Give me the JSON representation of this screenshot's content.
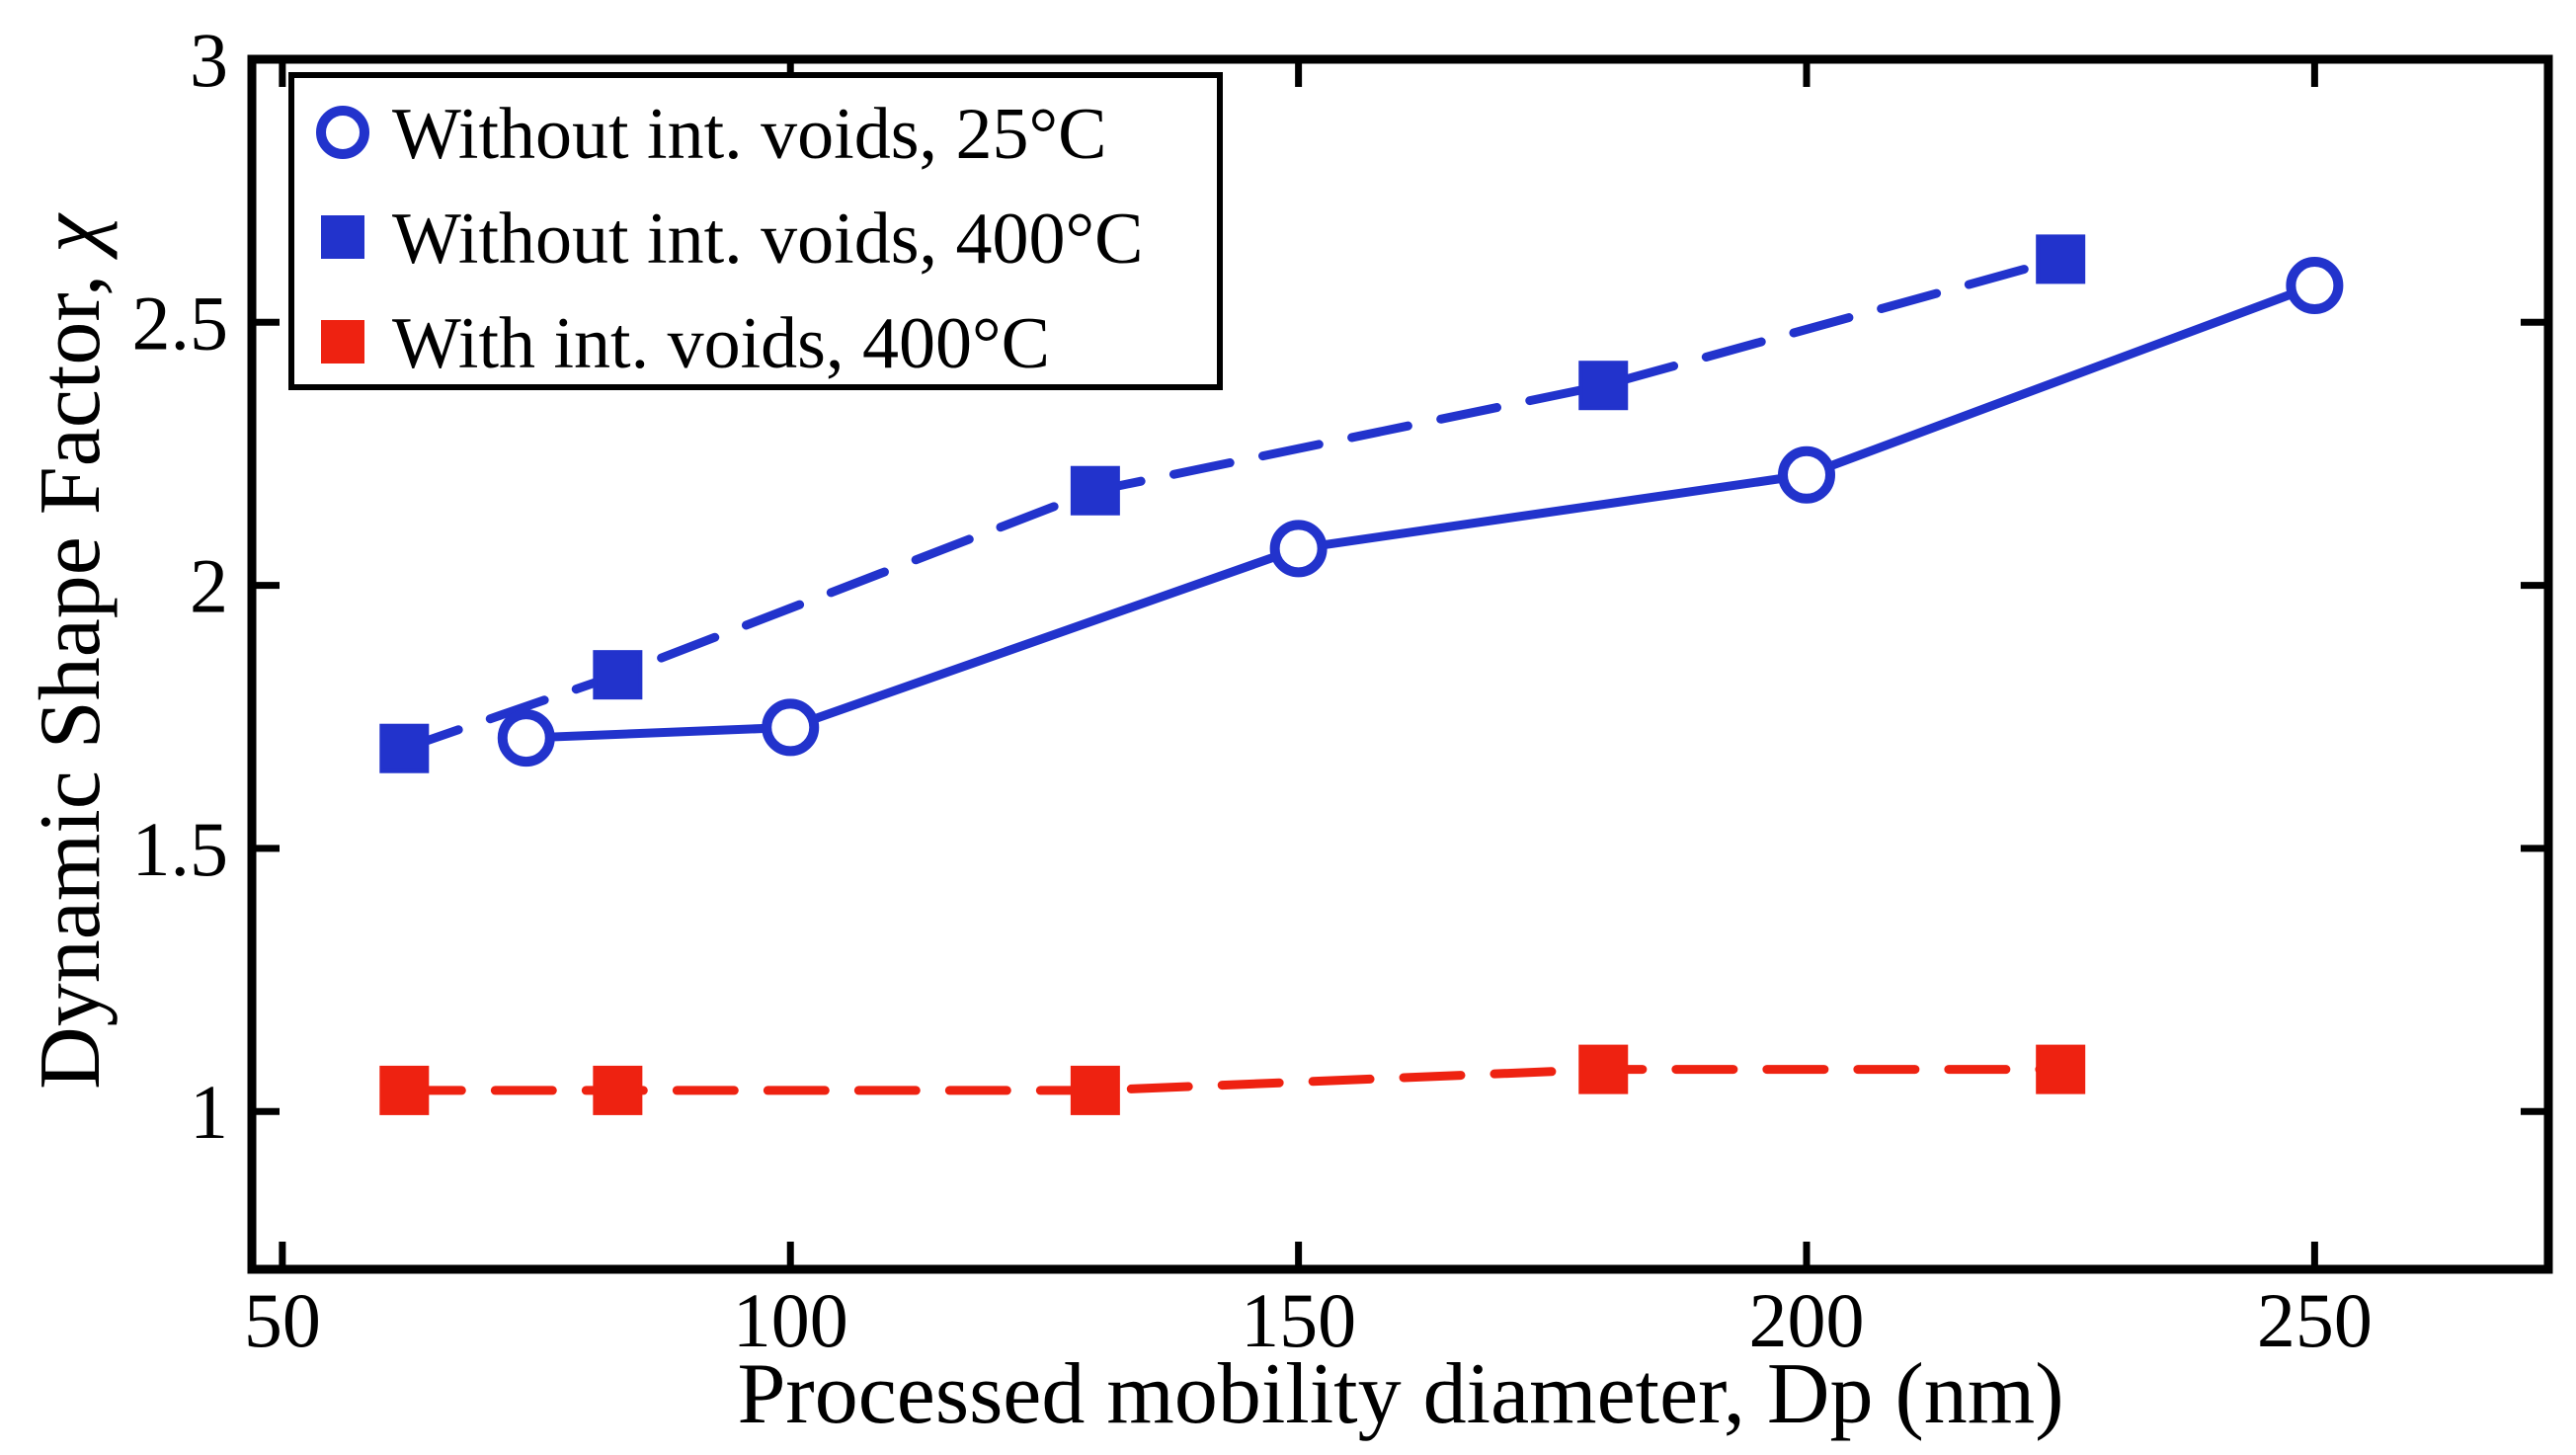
{
  "figure": {
    "background": "#ffffff",
    "frame_color": "#000000"
  },
  "chart_data": {
    "type": "line",
    "title": "",
    "xlabel": "Processed mobility diameter, Dp (nm)",
    "ylabel_prefix": "Dynamic Shape Factor, ",
    "ylabel_symbol": "χ",
    "xlim": [
      47,
      273
    ],
    "ylim": [
      0.7,
      3
    ],
    "xticks": [
      50,
      100,
      150,
      200,
      250
    ],
    "xtick_labels": [
      "50",
      "100",
      "150",
      "200",
      "250"
    ],
    "yticks": [
      1,
      1.5,
      2,
      2.5,
      3
    ],
    "ytick_labels": [
      "1",
      "1.5",
      "2",
      "2.5",
      "3"
    ],
    "grid": false,
    "legend_position": "top-left",
    "axis_color": "#000000",
    "series": [
      {
        "name": "Without int. voids, 25°C",
        "color": "#2233cc",
        "line_style": "solid",
        "marker": "circle-open",
        "x": [
          74,
          100,
          150,
          200,
          250
        ],
        "y": [
          1.71,
          1.73,
          2.07,
          2.21,
          2.57
        ]
      },
      {
        "name": "Without int. voids, 400°C",
        "color": "#2233cc",
        "line_style": "dashed",
        "marker": "square-filled",
        "x": [
          62,
          83,
          130,
          180,
          225
        ],
        "y": [
          1.69,
          1.83,
          2.18,
          2.38,
          2.62
        ]
      },
      {
        "name": "With int. voids, 400°C",
        "color": "#ee2211",
        "line_style": "dashed",
        "marker": "square-filled",
        "x": [
          62,
          83,
          130,
          180,
          225
        ],
        "y": [
          1.04,
          1.04,
          1.04,
          1.08,
          1.08
        ]
      }
    ]
  }
}
